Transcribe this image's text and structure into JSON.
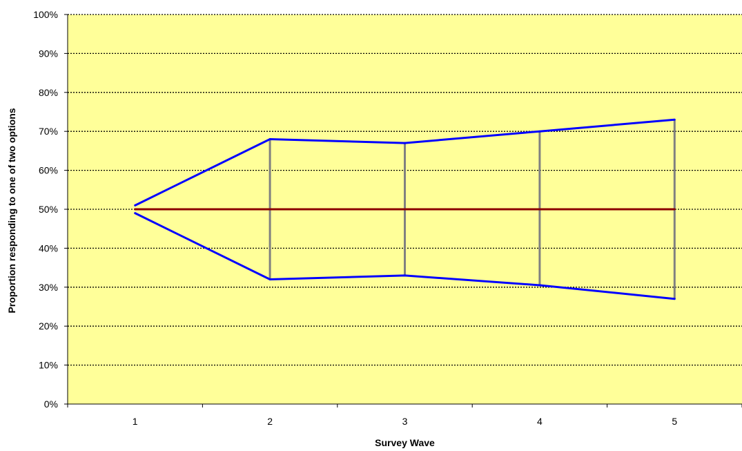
{
  "chart_data": {
    "type": "line",
    "xlabel": "Survey Wave",
    "ylabel": "Proportion responding to one of two options",
    "categories": [
      "1",
      "2",
      "3",
      "4",
      "5"
    ],
    "ylim": [
      0,
      100
    ],
    "yticks": [
      "0%",
      "10%",
      "20%",
      "30%",
      "40%",
      "50%",
      "60%",
      "70%",
      "80%",
      "90%",
      "100%"
    ],
    "grid": true,
    "legend": "none",
    "series": [
      {
        "values": [
          51,
          68,
          67,
          70,
          73
        ],
        "color": "#0000ff"
      },
      {
        "values": [
          49,
          32,
          33,
          30.5,
          27
        ],
        "color": "#0000ff"
      },
      {
        "values": [
          50,
          50,
          50,
          50,
          50
        ],
        "color": "#8b0000"
      }
    ],
    "connector_color": "#808080",
    "plot_background": "#ffff99",
    "gridline_color": "#000000"
  }
}
